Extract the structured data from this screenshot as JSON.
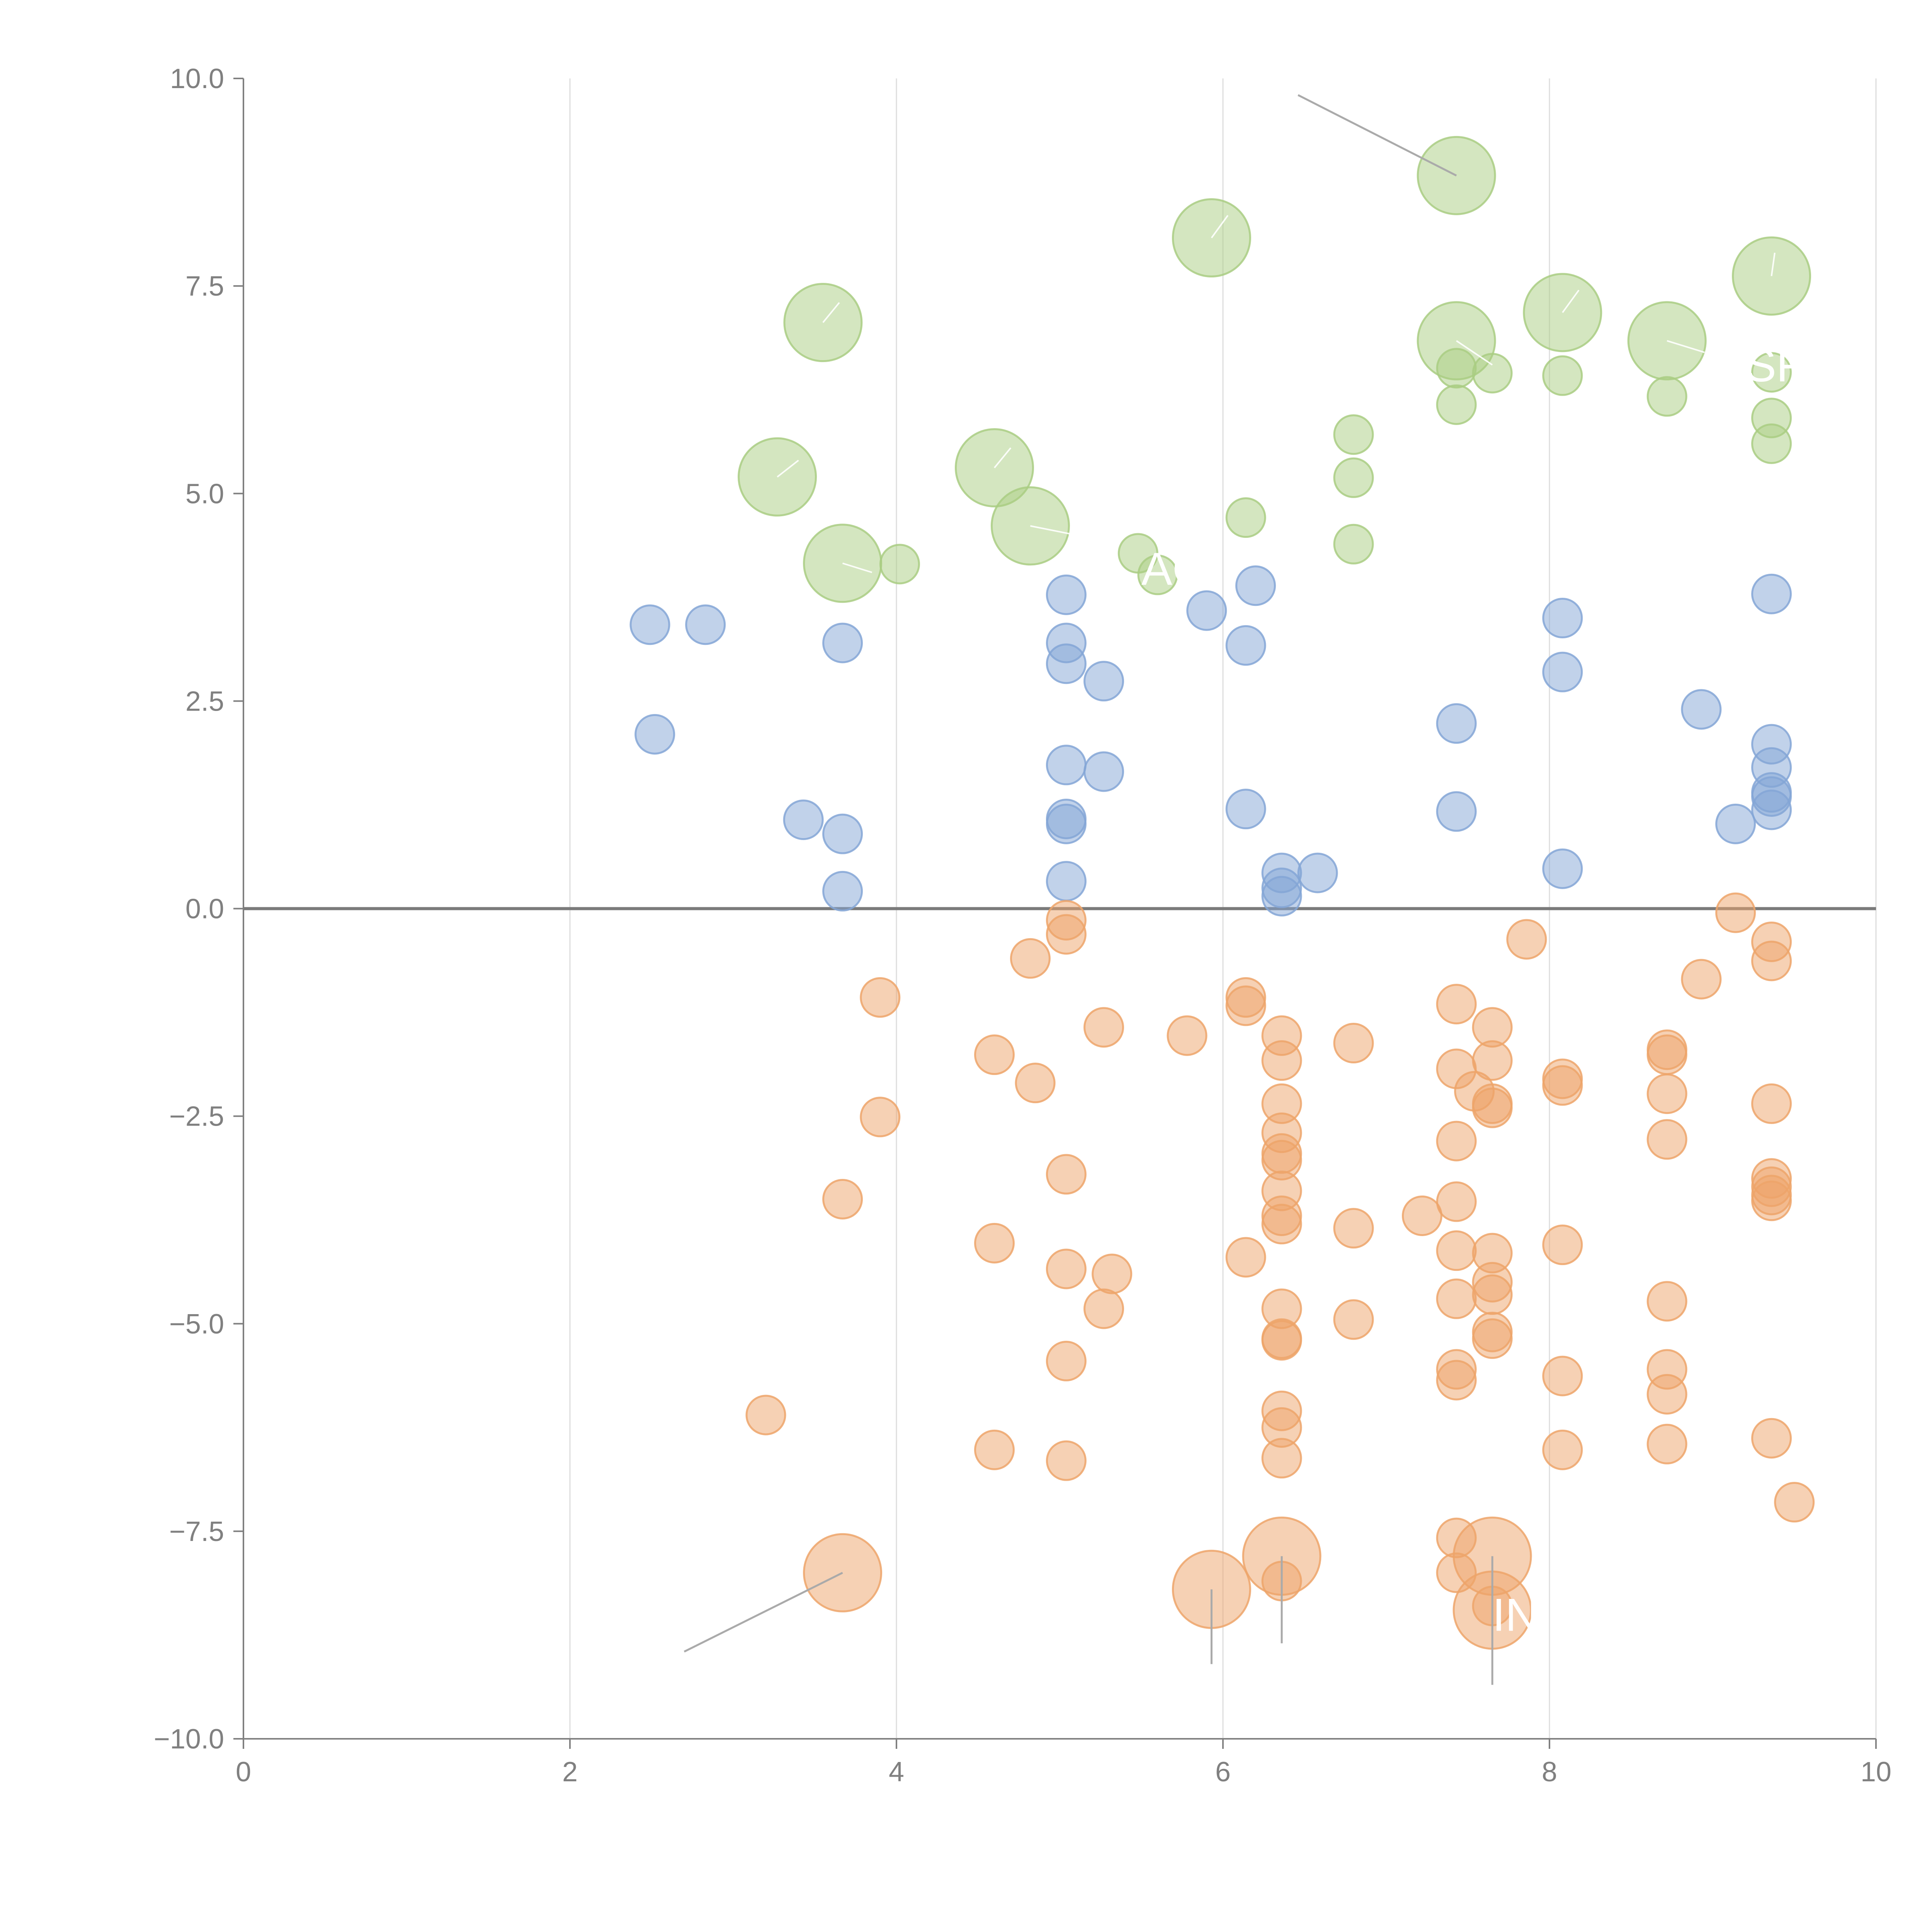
{
  "colors": {
    "green": "#a9cd82",
    "blue": "#84a6d6",
    "orange": "#eda46a",
    "axis": "#808080",
    "grid": "#dddddd",
    "zero_line": "#7a7a7a",
    "leader_line": "#aaaaaa",
    "annotation_text": "#ffffff"
  },
  "chart_data": {
    "type": "scatter",
    "title": "",
    "xlabel": "",
    "ylabel": "",
    "xlim": [
      0,
      10
    ],
    "ylim": [
      -10,
      10
    ],
    "grid": "vertical",
    "legend": "none",
    "xticks": [
      0,
      2,
      4,
      6,
      8,
      10
    ],
    "xtick_labels": [
      "0",
      "2",
      "4",
      "6",
      "8",
      "10"
    ],
    "yticks": [
      10,
      7.5,
      5,
      2.5,
      0,
      -2.5,
      -5,
      -7.5,
      -10
    ],
    "ytick_labels": [
      "10.0",
      "7.5",
      "5.0",
      "2.5",
      "0.0",
      "−2.5",
      "−5.0",
      "−7.5",
      "−10.0"
    ],
    "marker_size_scale": {
      "small": 1,
      "large": 2
    },
    "series": [
      {
        "name": "green",
        "color": "#a9cd82",
        "points": [
          {
            "x": 7.43,
            "y": 8.83,
            "size": "large"
          },
          {
            "x": 5.93,
            "y": 8.08,
            "size": "large"
          },
          {
            "x": 9.36,
            "y": 7.62,
            "size": "large"
          },
          {
            "x": 3.55,
            "y": 7.06,
            "size": "large"
          },
          {
            "x": 8.08,
            "y": 7.18,
            "size": "large"
          },
          {
            "x": 7.43,
            "y": 6.84,
            "size": "large"
          },
          {
            "x": 8.72,
            "y": 6.84,
            "size": "large"
          },
          {
            "x": 3.27,
            "y": 5.2,
            "size": "large"
          },
          {
            "x": 4.6,
            "y": 5.31,
            "size": "large"
          },
          {
            "x": 4.82,
            "y": 4.61,
            "size": "large"
          },
          {
            "x": 3.67,
            "y": 4.16,
            "size": "large"
          },
          {
            "x": 7.43,
            "y": 6.51,
            "size": "small"
          },
          {
            "x": 7.65,
            "y": 6.45,
            "size": "small"
          },
          {
            "x": 7.43,
            "y": 6.07,
            "size": "small"
          },
          {
            "x": 8.08,
            "y": 6.42,
            "size": "small"
          },
          {
            "x": 8.72,
            "y": 6.17,
            "size": "small"
          },
          {
            "x": 9.36,
            "y": 6.46,
            "size": "small"
          },
          {
            "x": 9.36,
            "y": 5.91,
            "size": "small"
          },
          {
            "x": 9.36,
            "y": 5.6,
            "size": "small"
          },
          {
            "x": 6.8,
            "y": 5.71,
            "size": "small"
          },
          {
            "x": 6.8,
            "y": 5.19,
            "size": "small"
          },
          {
            "x": 6.8,
            "y": 4.39,
            "size": "small"
          },
          {
            "x": 6.14,
            "y": 4.71,
            "size": "small"
          },
          {
            "x": 5.48,
            "y": 4.28,
            "size": "small"
          },
          {
            "x": 5.6,
            "y": 4.02,
            "size": "small"
          },
          {
            "x": 4.02,
            "y": 4.15,
            "size": "small"
          }
        ]
      },
      {
        "name": "blue",
        "color": "#84a6d6",
        "points": [
          {
            "x": 2.49,
            "y": 3.42
          },
          {
            "x": 2.83,
            "y": 3.42
          },
          {
            "x": 2.52,
            "y": 2.1
          },
          {
            "x": 3.67,
            "y": 3.2
          },
          {
            "x": 3.43,
            "y": 1.07
          },
          {
            "x": 3.67,
            "y": 0.9
          },
          {
            "x": 3.67,
            "y": 0.21
          },
          {
            "x": 5.04,
            "y": 3.78
          },
          {
            "x": 5.04,
            "y": 3.2
          },
          {
            "x": 5.04,
            "y": 2.95
          },
          {
            "x": 5.27,
            "y": 2.74
          },
          {
            "x": 5.04,
            "y": 1.73
          },
          {
            "x": 5.27,
            "y": 1.65
          },
          {
            "x": 5.04,
            "y": 1.08
          },
          {
            "x": 5.04,
            "y": 1.02
          },
          {
            "x": 5.04,
            "y": 0.33
          },
          {
            "x": 5.9,
            "y": 3.59
          },
          {
            "x": 6.2,
            "y": 3.89
          },
          {
            "x": 6.14,
            "y": 3.17
          },
          {
            "x": 6.14,
            "y": 1.2
          },
          {
            "x": 6.36,
            "y": 0.43
          },
          {
            "x": 6.36,
            "y": 0.25
          },
          {
            "x": 6.36,
            "y": 0.15
          },
          {
            "x": 6.58,
            "y": 0.43
          },
          {
            "x": 7.43,
            "y": 2.23
          },
          {
            "x": 7.43,
            "y": 1.17
          },
          {
            "x": 8.08,
            "y": 3.5
          },
          {
            "x": 8.08,
            "y": 2.85
          },
          {
            "x": 8.08,
            "y": 0.48
          },
          {
            "x": 8.93,
            "y": 2.4
          },
          {
            "x": 9.14,
            "y": 1.02
          },
          {
            "x": 9.36,
            "y": 3.79
          },
          {
            "x": 9.36,
            "y": 1.98
          },
          {
            "x": 9.36,
            "y": 1.7
          },
          {
            "x": 9.36,
            "y": 1.4
          },
          {
            "x": 9.36,
            "y": 1.35
          },
          {
            "x": 9.36,
            "y": 1.19
          }
        ]
      },
      {
        "name": "orange",
        "color": "#eda46a",
        "points": [
          {
            "x": 3.67,
            "y": -8.0,
            "size": "large"
          },
          {
            "x": 5.93,
            "y": -8.2,
            "size": "large"
          },
          {
            "x": 6.36,
            "y": -7.8,
            "size": "large"
          },
          {
            "x": 7.65,
            "y": -7.8,
            "size": "large"
          },
          {
            "x": 7.65,
            "y": -8.45,
            "size": "large"
          },
          {
            "x": 3.2,
            "y": -6.1
          },
          {
            "x": 3.67,
            "y": -3.5
          },
          {
            "x": 3.9,
            "y": -1.07
          },
          {
            "x": 3.9,
            "y": -2.51
          },
          {
            "x": 4.6,
            "y": -1.76
          },
          {
            "x": 4.6,
            "y": -4.03
          },
          {
            "x": 4.6,
            "y": -6.52
          },
          {
            "x": 4.82,
            "y": -0.6
          },
          {
            "x": 4.85,
            "y": -2.1
          },
          {
            "x": 5.04,
            "y": -0.14
          },
          {
            "x": 5.04,
            "y": -0.31
          },
          {
            "x": 5.04,
            "y": -3.2
          },
          {
            "x": 5.04,
            "y": -4.34
          },
          {
            "x": 5.04,
            "y": -5.45
          },
          {
            "x": 5.04,
            "y": -6.65
          },
          {
            "x": 5.27,
            "y": -1.43
          },
          {
            "x": 5.27,
            "y": -4.82
          },
          {
            "x": 5.32,
            "y": -4.4
          },
          {
            "x": 5.78,
            "y": -1.53
          },
          {
            "x": 6.14,
            "y": -1.07
          },
          {
            "x": 6.14,
            "y": -1.17
          },
          {
            "x": 6.14,
            "y": -4.2
          },
          {
            "x": 6.36,
            "y": -1.53
          },
          {
            "x": 6.36,
            "y": -1.83
          },
          {
            "x": 6.36,
            "y": -2.35
          },
          {
            "x": 6.36,
            "y": -2.7
          },
          {
            "x": 6.36,
            "y": -2.95
          },
          {
            "x": 6.36,
            "y": -3.03
          },
          {
            "x": 6.36,
            "y": -3.4
          },
          {
            "x": 6.36,
            "y": -3.7
          },
          {
            "x": 6.36,
            "y": -3.8
          },
          {
            "x": 6.36,
            "y": -4.82
          },
          {
            "x": 6.36,
            "y": -5.18
          },
          {
            "x": 6.36,
            "y": -5.2
          },
          {
            "x": 6.36,
            "y": -6.05
          },
          {
            "x": 6.36,
            "y": -6.25
          },
          {
            "x": 6.36,
            "y": -6.62
          },
          {
            "x": 6.36,
            "y": -8.1
          },
          {
            "x": 6.8,
            "y": -1.62
          },
          {
            "x": 6.8,
            "y": -3.85
          },
          {
            "x": 6.8,
            "y": -4.95
          },
          {
            "x": 7.22,
            "y": -3.7
          },
          {
            "x": 7.43,
            "y": -1.15
          },
          {
            "x": 7.43,
            "y": -1.93
          },
          {
            "x": 7.43,
            "y": -2.8
          },
          {
            "x": 7.43,
            "y": -3.53
          },
          {
            "x": 7.43,
            "y": -4.12
          },
          {
            "x": 7.43,
            "y": -4.7
          },
          {
            "x": 7.43,
            "y": -5.55
          },
          {
            "x": 7.43,
            "y": -5.68
          },
          {
            "x": 7.43,
            "y": -7.58
          },
          {
            "x": 7.43,
            "y": -8.0
          },
          {
            "x": 7.54,
            "y": -2.2
          },
          {
            "x": 7.65,
            "y": -1.43
          },
          {
            "x": 7.65,
            "y": -1.83
          },
          {
            "x": 7.65,
            "y": -2.35
          },
          {
            "x": 7.65,
            "y": -2.4
          },
          {
            "x": 7.65,
            "y": -4.15
          },
          {
            "x": 7.65,
            "y": -4.5
          },
          {
            "x": 7.65,
            "y": -4.65
          },
          {
            "x": 7.65,
            "y": -5.1
          },
          {
            "x": 7.65,
            "y": -5.18
          },
          {
            "x": 7.65,
            "y": -8.4
          },
          {
            "x": 7.86,
            "y": -0.37
          },
          {
            "x": 8.08,
            "y": -2.05
          },
          {
            "x": 8.08,
            "y": -2.13
          },
          {
            "x": 8.08,
            "y": -4.05
          },
          {
            "x": 8.08,
            "y": -5.63
          },
          {
            "x": 8.08,
            "y": -6.52
          },
          {
            "x": 8.72,
            "y": -1.7
          },
          {
            "x": 8.72,
            "y": -1.76
          },
          {
            "x": 8.72,
            "y": -2.23
          },
          {
            "x": 8.72,
            "y": -2.78
          },
          {
            "x": 8.72,
            "y": -4.73
          },
          {
            "x": 8.72,
            "y": -5.55
          },
          {
            "x": 8.72,
            "y": -5.85
          },
          {
            "x": 8.72,
            "y": -6.45
          },
          {
            "x": 8.93,
            "y": -0.85
          },
          {
            "x": 9.14,
            "y": -0.05
          },
          {
            "x": 9.36,
            "y": -0.4
          },
          {
            "x": 9.36,
            "y": -0.63
          },
          {
            "x": 9.36,
            "y": -2.35
          },
          {
            "x": 9.36,
            "y": -3.25
          },
          {
            "x": 9.36,
            "y": -3.35
          },
          {
            "x": 9.36,
            "y": -3.45
          },
          {
            "x": 9.36,
            "y": -3.52
          },
          {
            "x": 9.36,
            "y": -6.38
          },
          {
            "x": 9.5,
            "y": -7.15
          }
        ]
      }
    ],
    "annotations": [
      {
        "text": "AG",
        "color": "#ffffff",
        "label_at": {
          "x": 5.5,
          "y": 3.9
        }
      },
      {
        "text": "SF",
        "color": "#ffffff",
        "label_at": {
          "x": 9.2,
          "y": 6.35
        }
      },
      {
        "text": "IN",
        "color": "#ffffff",
        "label_at": {
          "x": 7.65,
          "y": -8.7
        }
      }
    ],
    "leader_lines": [
      {
        "color": "#aaaaaa",
        "from": {
          "x": 7.43,
          "y": 8.83
        },
        "to": {
          "x": 6.46,
          "y": 9.8
        }
      },
      {
        "color": "#aaaaaa",
        "from": {
          "x": 3.67,
          "y": -8.0
        },
        "to": {
          "x": 2.7,
          "y": -8.95
        }
      },
      {
        "color": "#aaaaaa",
        "from": {
          "x": 5.93,
          "y": -8.2
        },
        "to": {
          "x": 5.93,
          "y": -9.1
        }
      },
      {
        "color": "#aaaaaa",
        "from": {
          "x": 6.36,
          "y": -7.8
        },
        "to": {
          "x": 6.36,
          "y": -8.85
        }
      },
      {
        "color": "#aaaaaa",
        "from": {
          "x": 7.65,
          "y": -7.8
        },
        "to": {
          "x": 7.65,
          "y": -9.35
        }
      }
    ],
    "inner_strokes": [
      {
        "color": "#ffffff",
        "from": {
          "x": 3.55,
          "y": 7.06
        },
        "to": {
          "x": 3.65,
          "y": 7.3
        }
      },
      {
        "color": "#ffffff",
        "from": {
          "x": 5.93,
          "y": 8.08
        },
        "to": {
          "x": 6.03,
          "y": 8.35
        }
      },
      {
        "color": "#ffffff",
        "from": {
          "x": 9.36,
          "y": 7.62
        },
        "to": {
          "x": 9.38,
          "y": 7.9
        }
      },
      {
        "color": "#ffffff",
        "from": {
          "x": 8.08,
          "y": 7.18
        },
        "to": {
          "x": 8.18,
          "y": 7.45
        }
      },
      {
        "color": "#ffffff",
        "from": {
          "x": 7.43,
          "y": 6.84
        },
        "to": {
          "x": 7.65,
          "y": 6.55
        }
      },
      {
        "color": "#ffffff",
        "from": {
          "x": 8.72,
          "y": 6.84
        },
        "to": {
          "x": 8.95,
          "y": 6.7
        }
      },
      {
        "color": "#ffffff",
        "from": {
          "x": 3.27,
          "y": 5.2
        },
        "to": {
          "x": 3.4,
          "y": 5.4
        }
      },
      {
        "color": "#ffffff",
        "from": {
          "x": 4.6,
          "y": 5.31
        },
        "to": {
          "x": 4.7,
          "y": 5.55
        }
      },
      {
        "color": "#ffffff",
        "from": {
          "x": 4.82,
          "y": 4.61
        },
        "to": {
          "x": 5.1,
          "y": 4.5
        }
      },
      {
        "color": "#ffffff",
        "from": {
          "x": 3.67,
          "y": 4.16
        },
        "to": {
          "x": 3.85,
          "y": 4.05
        }
      }
    ]
  }
}
